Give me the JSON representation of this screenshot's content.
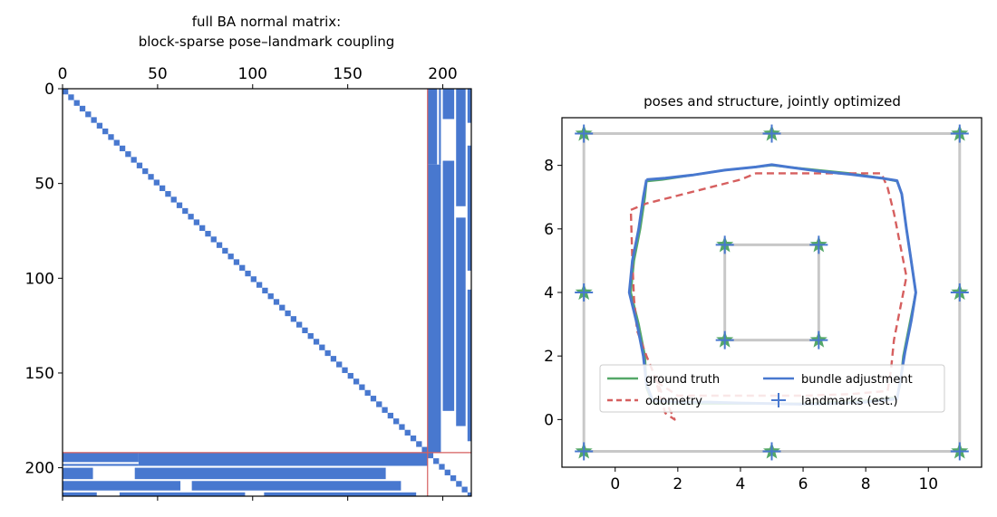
{
  "chart_data": [
    {
      "type": "heatmap",
      "title_lines": [
        "full BA normal matrix:",
        "block-sparse pose–landmark coupling"
      ],
      "x_ticks": [
        0,
        50,
        100,
        150,
        200
      ],
      "y_ticks": [
        0,
        50,
        100,
        150,
        200
      ],
      "xlim": [
        0,
        215
      ],
      "ylim": [
        215,
        0
      ],
      "x_ticks_position": "top",
      "n_poses": 192,
      "n_total": 215,
      "partition_index": 192,
      "colors": {
        "fill": "#4878cf",
        "partition": "#d65f5f"
      },
      "pose_landmark_blocks": [
        {
          "rows": [
            0,
            16
          ],
          "cols": [
            200,
            206
          ]
        },
        {
          "rows": [
            0,
            40
          ],
          "cols": [
            192,
            197
          ]
        },
        {
          "rows": [
            0,
            40
          ],
          "cols": [
            198,
            199
          ]
        },
        {
          "rows": [
            0,
            62
          ],
          "cols": [
            207,
            212
          ]
        },
        {
          "rows": [
            0,
            18
          ],
          "cols": [
            213,
            215
          ]
        },
        {
          "rows": [
            30,
            96
          ],
          "cols": [
            213,
            215
          ]
        },
        {
          "rows": [
            38,
            170
          ],
          "cols": [
            200,
            206
          ]
        },
        {
          "rows": [
            40,
            192
          ],
          "cols": [
            192,
            199
          ]
        },
        {
          "rows": [
            68,
            178
          ],
          "cols": [
            207,
            212
          ]
        },
        {
          "rows": [
            106,
            186
          ],
          "cols": [
            213,
            215
          ]
        }
      ]
    },
    {
      "type": "line",
      "title": "poses and structure, jointly optimized",
      "xlim": [
        -1.7,
        11.7
      ],
      "ylim": [
        -1.5,
        9.5
      ],
      "x_ticks": [
        0,
        2,
        4,
        6,
        8,
        10
      ],
      "y_ticks": [
        0,
        2,
        4,
        6,
        8
      ],
      "grid": false,
      "legend": {
        "placement": "lower-center",
        "columns": 2
      },
      "structure": {
        "color": "#c8c8c8",
        "segments": [
          [
            [
              -1,
              -1
            ],
            [
              11,
              -1
            ]
          ],
          [
            [
              11,
              -1
            ],
            [
              11,
              9
            ]
          ],
          [
            [
              11,
              9
            ],
            [
              -1,
              9
            ]
          ],
          [
            [
              -1,
              9
            ],
            [
              -1,
              -1
            ]
          ],
          [
            [
              3.5,
              2.5
            ],
            [
              6.5,
              2.5
            ]
          ],
          [
            [
              6.5,
              2.5
            ],
            [
              6.5,
              5.5
            ]
          ],
          [
            [
              6.5,
              5.5
            ],
            [
              3.5,
              5.5
            ]
          ],
          [
            [
              3.5,
              5.5
            ],
            [
              3.5,
              2.5
            ]
          ]
        ]
      },
      "ground_truth_landmarks": {
        "color": "#55a868",
        "points": [
          [
            -1,
            9
          ],
          [
            5,
            9
          ],
          [
            11,
            9
          ],
          [
            -1,
            4
          ],
          [
            11,
            4
          ],
          [
            -1,
            -1
          ],
          [
            5,
            -1
          ],
          [
            11,
            -1
          ],
          [
            3.5,
            5.5
          ],
          [
            6.5,
            5.5
          ],
          [
            3.5,
            2.5
          ],
          [
            6.5,
            2.5
          ]
        ]
      },
      "series": [
        {
          "name": "ground truth",
          "color": "#55a868",
          "style": "solid",
          "points": [
            [
              1.0,
              7.5
            ],
            [
              1.5,
              7.55
            ],
            [
              2.5,
              7.7
            ],
            [
              3.5,
              7.85
            ],
            [
              4.5,
              7.95
            ],
            [
              5.0,
              8.0
            ],
            [
              5.5,
              7.95
            ],
            [
              6.5,
              7.85
            ],
            [
              7.5,
              7.75
            ],
            [
              8.5,
              7.6
            ],
            [
              9.0,
              7.5
            ],
            [
              9.15,
              7.1
            ],
            [
              9.3,
              6.0
            ],
            [
              9.45,
              5.0
            ],
            [
              9.6,
              4.0
            ],
            [
              9.4,
              3.0
            ],
            [
              9.2,
              2.0
            ],
            [
              9.1,
              1.1
            ],
            [
              9.0,
              0.7
            ],
            [
              8.0,
              0.6
            ],
            [
              7.0,
              0.55
            ],
            [
              6.0,
              0.5
            ],
            [
              5.0,
              0.5
            ],
            [
              4.0,
              0.5
            ],
            [
              3.0,
              0.5
            ],
            [
              2.0,
              0.5
            ],
            [
              1.2,
              0.5
            ],
            [
              1.0,
              1.0
            ],
            [
              0.95,
              2.0
            ],
            [
              0.75,
              3.0
            ],
            [
              0.5,
              4.0
            ],
            [
              0.6,
              5.0
            ],
            [
              0.8,
              6.0
            ],
            [
              0.95,
              7.0
            ],
            [
              1.0,
              7.5
            ]
          ]
        },
        {
          "name": "bundle adjustment",
          "color": "#4878cf",
          "style": "solid",
          "points": [
            [
              1.0,
              7.55
            ],
            [
              1.6,
              7.6
            ],
            [
              2.5,
              7.7
            ],
            [
              3.5,
              7.85
            ],
            [
              4.5,
              7.95
            ],
            [
              5.0,
              8.02
            ],
            [
              5.5,
              7.95
            ],
            [
              6.5,
              7.82
            ],
            [
              7.5,
              7.72
            ],
            [
              8.5,
              7.6
            ],
            [
              9.0,
              7.52
            ],
            [
              9.15,
              7.1
            ],
            [
              9.3,
              6.0
            ],
            [
              9.45,
              5.0
            ],
            [
              9.6,
              4.0
            ],
            [
              9.45,
              3.1
            ],
            [
              9.25,
              2.1
            ],
            [
              9.1,
              1.2
            ],
            [
              9.0,
              0.65
            ],
            [
              8.0,
              0.55
            ],
            [
              7.0,
              0.5
            ],
            [
              6.0,
              0.48
            ],
            [
              5.0,
              0.5
            ],
            [
              4.0,
              0.52
            ],
            [
              3.0,
              0.55
            ],
            [
              2.0,
              0.55
            ],
            [
              1.2,
              0.6
            ],
            [
              1.0,
              1.1
            ],
            [
              0.9,
              2.0
            ],
            [
              0.7,
              3.0
            ],
            [
              0.45,
              4.0
            ],
            [
              0.55,
              5.0
            ],
            [
              0.75,
              6.0
            ],
            [
              0.9,
              7.0
            ],
            [
              1.0,
              7.55
            ]
          ]
        },
        {
          "name": "odometry",
          "color": "#d65f5f",
          "style": "dashed",
          "points": [
            [
              0.5,
              6.6
            ],
            [
              1.0,
              6.8
            ],
            [
              2.0,
              7.05
            ],
            [
              3.0,
              7.3
            ],
            [
              4.0,
              7.55
            ],
            [
              4.5,
              7.75
            ],
            [
              5.5,
              7.75
            ],
            [
              6.5,
              7.75
            ],
            [
              7.5,
              7.75
            ],
            [
              8.5,
              7.75
            ],
            [
              8.7,
              7.3
            ],
            [
              8.9,
              6.5
            ],
            [
              9.1,
              5.5
            ],
            [
              9.3,
              4.5
            ],
            [
              9.1,
              3.5
            ],
            [
              8.9,
              2.5
            ],
            [
              8.8,
              1.5
            ],
            [
              8.7,
              0.9
            ],
            [
              7.5,
              0.8
            ],
            [
              6.0,
              0.75
            ],
            [
              5.0,
              0.75
            ],
            [
              3.5,
              0.75
            ],
            [
              2.0,
              0.75
            ],
            [
              1.3,
              1.2
            ],
            [
              1.6,
              0.2
            ],
            [
              1.9,
              0.0
            ],
            [
              1.5,
              0.8
            ],
            [
              1.0,
              2.0
            ],
            [
              0.7,
              2.8
            ],
            [
              0.6,
              3.8
            ],
            [
              0.55,
              5.0
            ],
            [
              0.5,
              6.6
            ]
          ]
        },
        {
          "name": "landmarks (est.)",
          "color": "#4878cf",
          "style": "marker-plus",
          "points": [
            [
              -1,
              9
            ],
            [
              5,
              9
            ],
            [
              11,
              9
            ],
            [
              -1,
              4
            ],
            [
              11,
              4
            ],
            [
              -1,
              -1
            ],
            [
              5,
              -1
            ],
            [
              11,
              -1
            ],
            [
              3.5,
              5.5
            ],
            [
              6.5,
              5.5
            ],
            [
              3.5,
              2.5
            ],
            [
              6.5,
              2.5
            ]
          ]
        }
      ]
    }
  ]
}
